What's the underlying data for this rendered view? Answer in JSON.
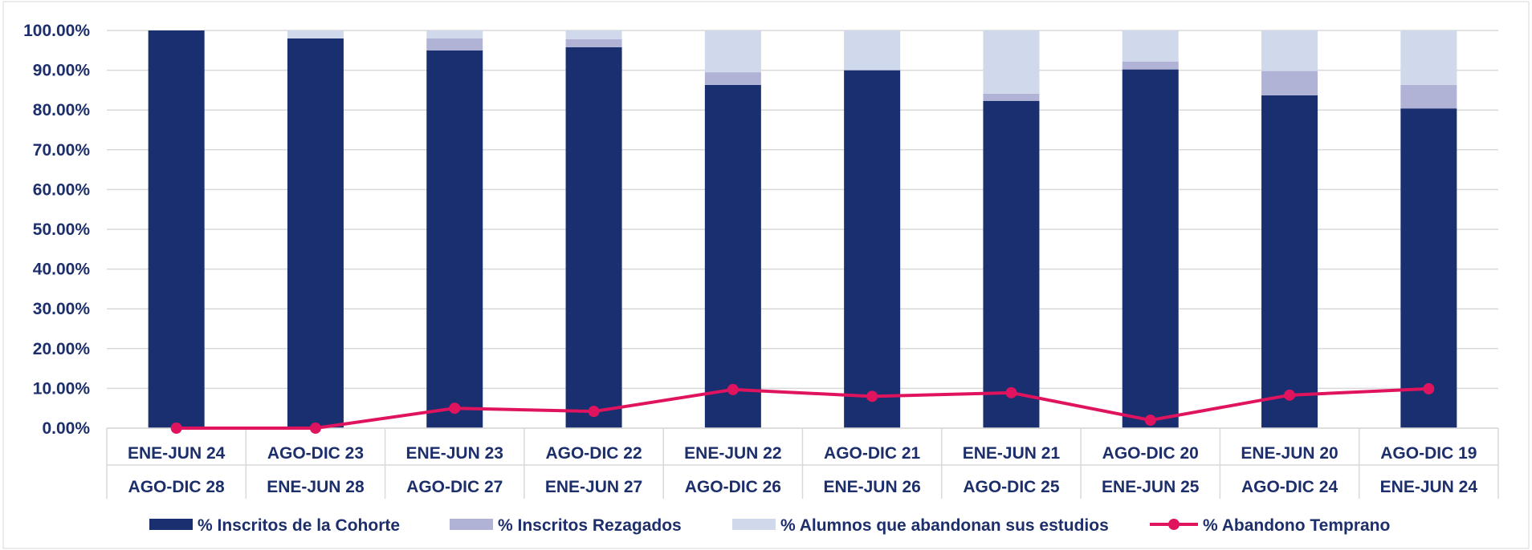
{
  "chart_data": {
    "type": "bar",
    "stacked": true,
    "categories_line1": [
      "ENE-JUN 24",
      "AGO-DIC 23",
      "ENE-JUN 23",
      "AGO-DIC 22",
      "ENE-JUN 22",
      "AGO-DIC 21",
      "ENE-JUN 21",
      "AGO-DIC 20",
      "ENE-JUN 20",
      "AGO-DIC 19"
    ],
    "categories_line2": [
      "AGO-DIC 28",
      "ENE-JUN 28",
      "AGO-DIC 27",
      "ENE-JUN 27",
      "AGO-DIC 26",
      "ENE-JUN 26",
      "AGO-DIC 25",
      "ENE-JUN 25",
      "AGO-DIC 24",
      "ENE-JUN 24"
    ],
    "ylim": [
      0,
      100
    ],
    "yticks": [
      "0.00%",
      "10.00%",
      "20.00%",
      "30.00%",
      "40.00%",
      "50.00%",
      "60.00%",
      "70.00%",
      "80.00%",
      "90.00%",
      "100.00%"
    ],
    "grid": true,
    "legend_position": "bottom",
    "series": [
      {
        "name": "% Inscritos de la Cohorte",
        "type": "bar",
        "color": "#1a2f70",
        "values": [
          100,
          98,
          95,
          95.8,
          86.3,
          90,
          82.3,
          90.2,
          83.7,
          80.4
        ]
      },
      {
        "name": "% Inscritos Rezagados",
        "type": "bar",
        "color": "#b0b3d6",
        "values": [
          0,
          0,
          3,
          2,
          3.2,
          0,
          1.8,
          2,
          6.1,
          5.9
        ]
      },
      {
        "name": "% Alumnos que abandonan sus estudios",
        "type": "bar",
        "color": "#d0d8ec",
        "values": [
          0,
          2,
          2,
          2.2,
          10.5,
          10,
          15.9,
          7.8,
          10.2,
          13.7
        ]
      },
      {
        "name": "% Abandono Temprano",
        "type": "line",
        "color": "#e0145e",
        "values": [
          0,
          0,
          5,
          4.2,
          9.7,
          8,
          8.9,
          2,
          8.3,
          9.9
        ]
      }
    ]
  }
}
